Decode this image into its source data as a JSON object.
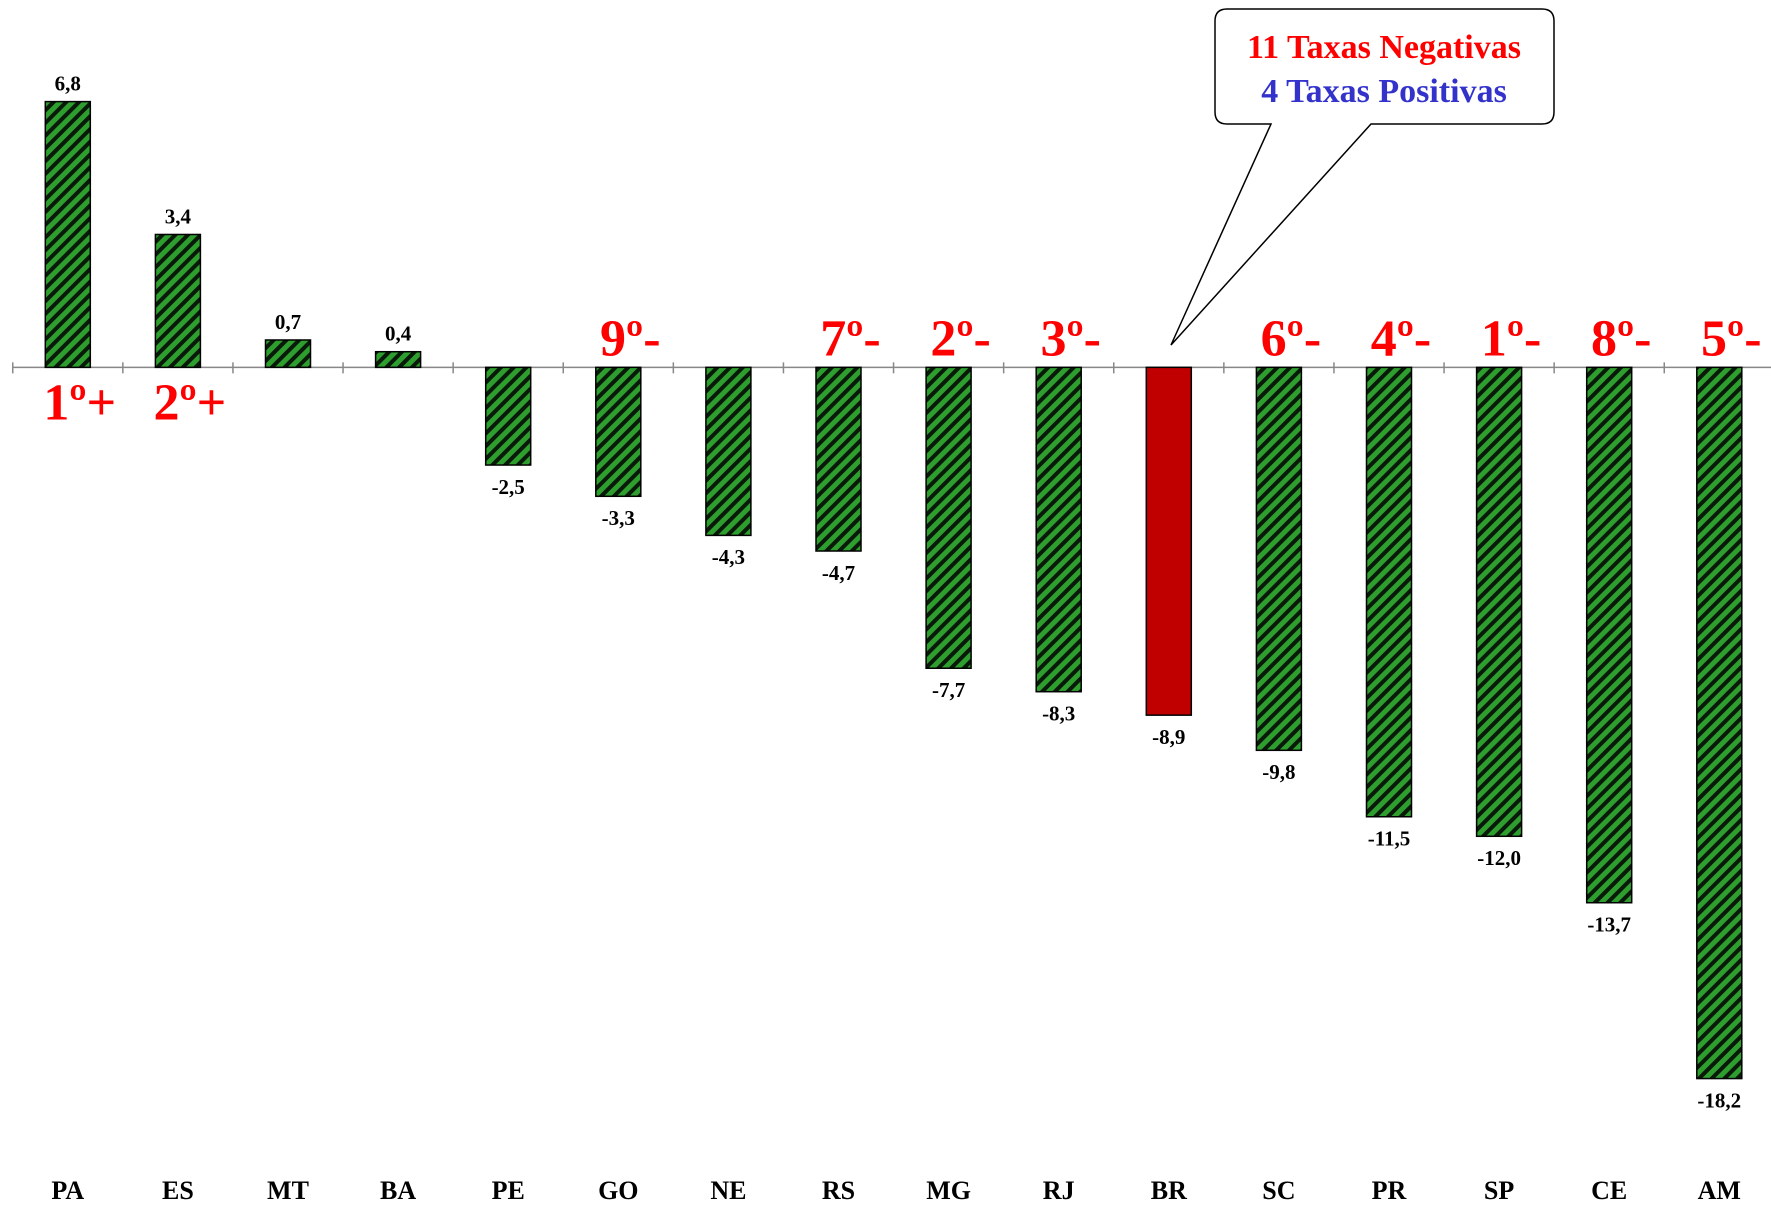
{
  "chart_data": {
    "type": "bar",
    "categories": [
      "PA",
      "ES",
      "MT",
      "BA",
      "PE",
      "GO",
      "NE",
      "RS",
      "MG",
      "RJ",
      "BR",
      "SC",
      "PR",
      "SP",
      "CE",
      "AM"
    ],
    "values": [
      6.8,
      3.4,
      0.7,
      0.4,
      -2.5,
      -3.3,
      -4.3,
      -4.7,
      -7.7,
      -8.3,
      -8.9,
      -9.8,
      -11.5,
      -12.0,
      -13.7,
      -18.2
    ],
    "value_labels": [
      "6,8",
      "3,4",
      "0,7",
      "0,4",
      "-2,5",
      "-3,3",
      "-4,3",
      "-4,7",
      "-7,7",
      "-8,3",
      "-8,9",
      "-9,8",
      "-11,5",
      "-12,0",
      "-13,7",
      "-18,2"
    ],
    "colors": [
      "#2e9e2e",
      "#2e9e2e",
      "#2e9e2e",
      "#2e9e2e",
      "#2e9e2e",
      "#2e9e2e",
      "#2e9e2e",
      "#2e9e2e",
      "#2e9e2e",
      "#2e9e2e",
      "#c00000",
      "#2e9e2e",
      "#2e9e2e",
      "#2e9e2e",
      "#2e9e2e",
      "#2e9e2e"
    ],
    "hatched": [
      true,
      true,
      true,
      true,
      true,
      true,
      true,
      true,
      true,
      true,
      false,
      true,
      true,
      true,
      true,
      true
    ],
    "rank_labels": [
      "1º+",
      "2º+",
      null,
      null,
      null,
      "9º-",
      null,
      "7º-",
      "2º-",
      "3º-",
      null,
      "6º-",
      "4º-",
      "1º-",
      "8º-",
      "5º-"
    ],
    "ylim": [
      -21,
      9.4
    ],
    "callout": {
      "line1": "11 Taxas Negativas",
      "line2": "4 Taxas Positivas"
    }
  }
}
